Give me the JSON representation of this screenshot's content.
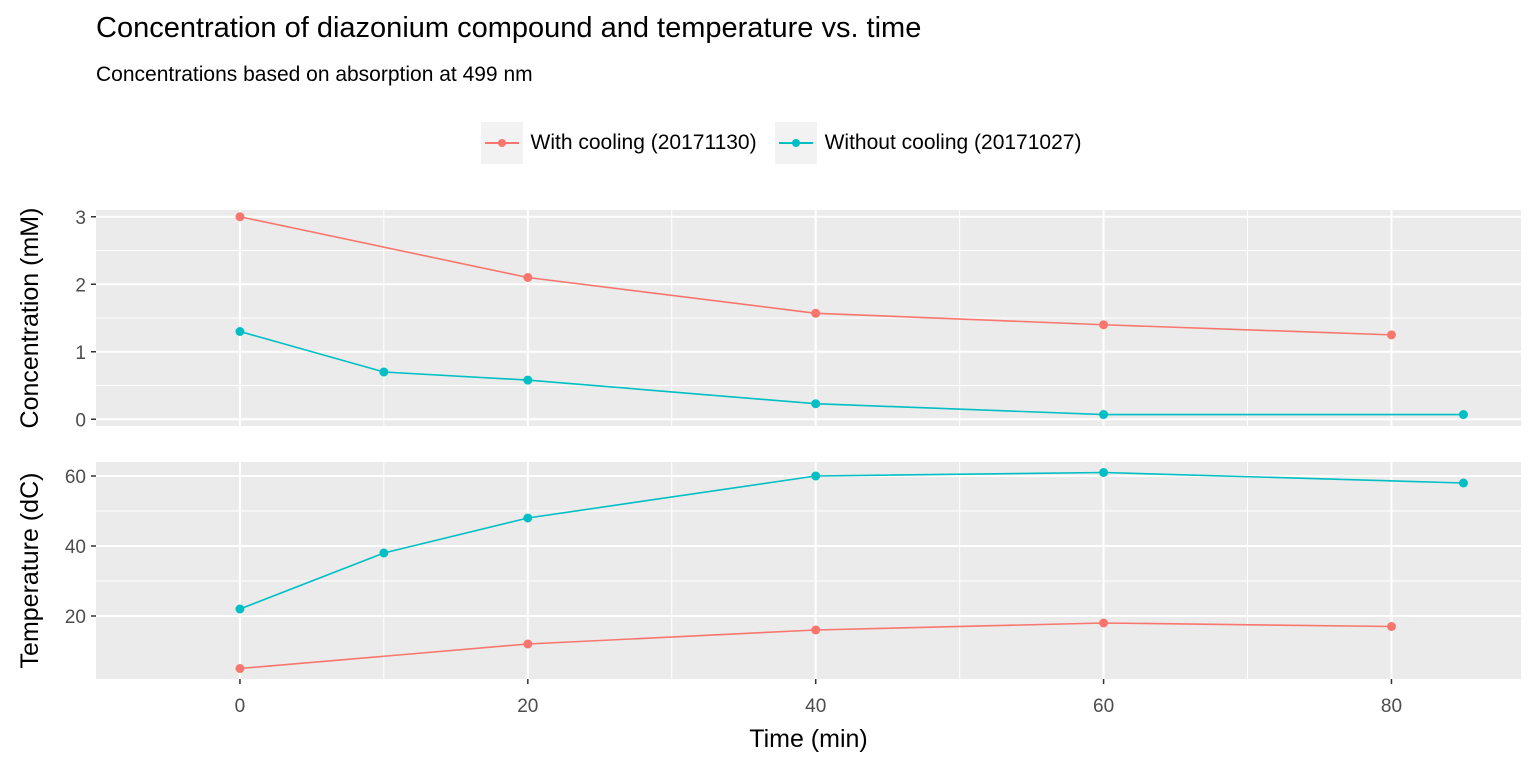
{
  "title": "Concentration of diazonium compound and temperature vs. time",
  "subtitle": "Concentrations based on absorption at 499 nm",
  "colors": {
    "with_cooling": "#F8766D",
    "without_cooling": "#00BFC4",
    "panel_bg": "#EBEBEB",
    "grid": "#FFFFFF"
  },
  "legend": [
    {
      "label": "With cooling (20171130)",
      "color": "#F8766D"
    },
    {
      "label": "Without cooling (20171027)",
      "color": "#00BFC4"
    }
  ],
  "chart_data": [
    {
      "type": "line",
      "ylabel": "Concentration (mM)",
      "xlim": [
        -10,
        89
      ],
      "ylim": [
        -0.1,
        3.1
      ],
      "yticks": [
        0,
        1,
        2,
        3
      ],
      "series": [
        {
          "name": "With cooling (20171130)",
          "color": "#F8766D",
          "x": [
            0,
            20,
            40,
            60,
            80
          ],
          "y": [
            3.0,
            2.1,
            1.57,
            1.4,
            1.25
          ]
        },
        {
          "name": "Without cooling (20171027)",
          "color": "#00BFC4",
          "x": [
            0,
            10,
            20,
            40,
            60,
            85
          ],
          "y": [
            1.3,
            0.7,
            0.58,
            0.23,
            0.07,
            0.07
          ]
        }
      ]
    },
    {
      "type": "line",
      "ylabel": "Temperature (dC)",
      "xlabel": "Time (min)",
      "xlim": [
        -10,
        89
      ],
      "ylim": [
        2,
        64
      ],
      "xticks": [
        0,
        20,
        40,
        60,
        80
      ],
      "yticks": [
        20,
        40,
        60
      ],
      "series": [
        {
          "name": "With cooling (20171130)",
          "color": "#F8766D",
          "x": [
            0,
            20,
            40,
            60,
            80
          ],
          "y": [
            5,
            12,
            16,
            18,
            17
          ]
        },
        {
          "name": "Without cooling (20171027)",
          "color": "#00BFC4",
          "x": [
            0,
            10,
            20,
            40,
            60,
            85
          ],
          "y": [
            22,
            38,
            48,
            60,
            61,
            58
          ]
        }
      ]
    }
  ]
}
